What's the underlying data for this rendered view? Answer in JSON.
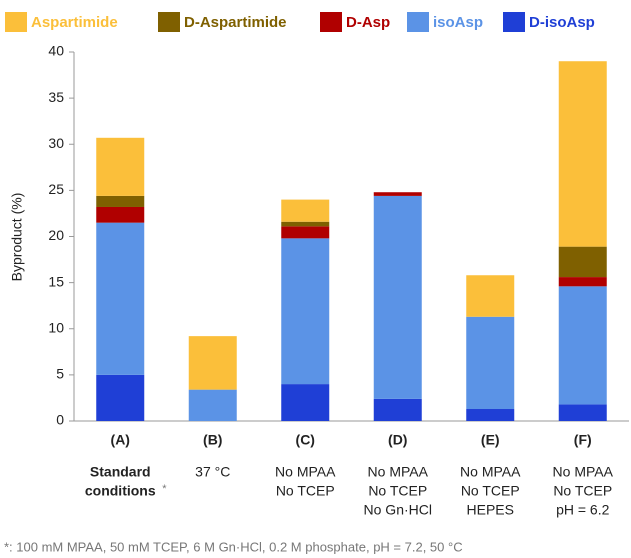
{
  "chart_data": {
    "type": "stacked_bar",
    "y_label": "Byproduct (%)",
    "categories": [
      "(A)",
      "(B)",
      "(C)",
      "(D)",
      "(E)",
      "(F)"
    ],
    "sub_labels": [
      [
        "Standard",
        "conditions"
      ],
      [
        "37 °C"
      ],
      [
        "No MPAA",
        "No TCEP"
      ],
      [
        "No MPAA",
        "No TCEP",
        "No Gn·HCl"
      ],
      [
        "No MPAA",
        "No TCEP",
        "HEPES"
      ],
      [
        "No MPAA",
        "No TCEP",
        "pH = 6.2"
      ]
    ],
    "footnote_marker": "*",
    "footnote": "*: 100 mM MPAA, 50 mM TCEP, 6 M Gn·HCl, 0.2 M phosphate, pH = 7.2, 50 °C",
    "series": [
      {
        "name": "Aspartimide",
        "color": "#fbbf3a",
        "values": [
          6.3,
          5.8,
          2.4,
          0,
          4.5,
          20.1
        ]
      },
      {
        "name": "D-Aspartimide",
        "color": "#7f6000",
        "values": [
          1.2,
          0,
          0.5,
          0,
          0,
          3.3
        ]
      },
      {
        "name": "D-Asp",
        "color": "#b00000",
        "values": [
          1.7,
          0,
          1.3,
          0.4,
          0,
          1.0
        ]
      },
      {
        "name": "isoAsp",
        "color": "#5b93e6",
        "values": [
          16.5,
          3.4,
          15.8,
          22.0,
          10.0,
          12.8
        ]
      },
      {
        "name": "D-isoAsp",
        "color": "#1f3fd6",
        "values": [
          5.0,
          0,
          4.0,
          2.4,
          1.3,
          1.8
        ]
      }
    ],
    "ylim": [
      0,
      40
    ],
    "yticks": [
      0,
      5,
      10,
      15,
      20,
      25,
      30,
      35,
      40
    ],
    "grid": false,
    "legend": "top"
  }
}
